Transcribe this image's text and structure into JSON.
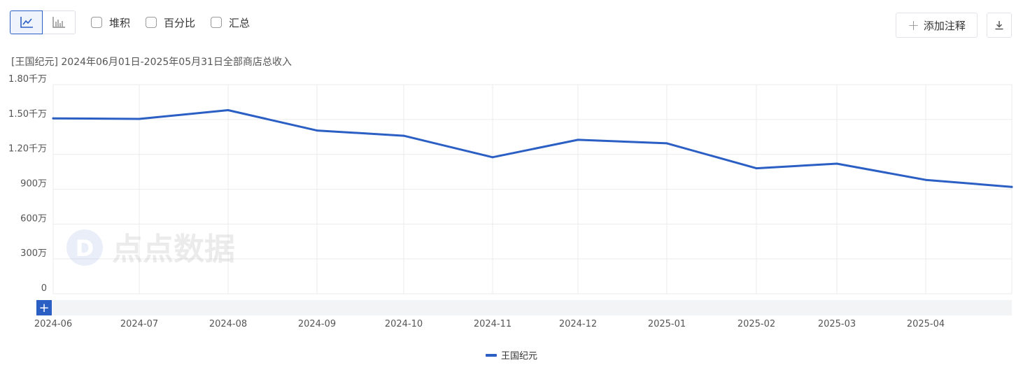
{
  "toolbar": {
    "line_chart_icon": "line-chart-icon",
    "bar_chart_icon": "bar-chart-icon",
    "checkboxes": [
      {
        "label": "堆积",
        "checked": false
      },
      {
        "label": "百分比",
        "checked": false
      },
      {
        "label": "汇总",
        "checked": false
      }
    ],
    "add_annotation_label": "添加注释",
    "download_icon": "download-icon"
  },
  "subtitle": "[王国纪元] 2024年06月01日-2025年05月31日全部商店总收入",
  "watermark": "点点数据",
  "zoom_button_label": "+",
  "colors": {
    "accent": "#2b5fc4",
    "grid": "#ebebeb",
    "scroll_track": "#f3f4f6"
  },
  "chart_data": {
    "type": "line",
    "categories": [
      "2024-06",
      "2024-07",
      "2024-08",
      "2024-09",
      "2024-10",
      "2024-11",
      "2024-12",
      "2025-01",
      "2025-02",
      "2025-03",
      "2025-04",
      "2025-05"
    ],
    "x_tick_labels": [
      "2024-06",
      "2024-07",
      "2024-08",
      "2024-09",
      "2024-10",
      "2024-11",
      "2024-12",
      "2025-01",
      "2025-02",
      "2025-03",
      "2025-04"
    ],
    "y_tick_labels": [
      "0",
      "300万",
      "600万",
      "900万",
      "1.20千万",
      "1.50千万",
      "1.80千万"
    ],
    "y_ticks": [
      0,
      3000000,
      6000000,
      9000000,
      12000000,
      15000000,
      18000000
    ],
    "ylim": [
      0,
      18000000
    ],
    "series": [
      {
        "name": "王国纪元",
        "color": "#2b5fc4",
        "values": [
          15100000,
          15050000,
          15800000,
          14050000,
          13600000,
          11750000,
          13250000,
          12950000,
          10800000,
          11200000,
          9800000,
          9200000
        ]
      }
    ],
    "grid": true,
    "legend_position": "bottom-center"
  }
}
